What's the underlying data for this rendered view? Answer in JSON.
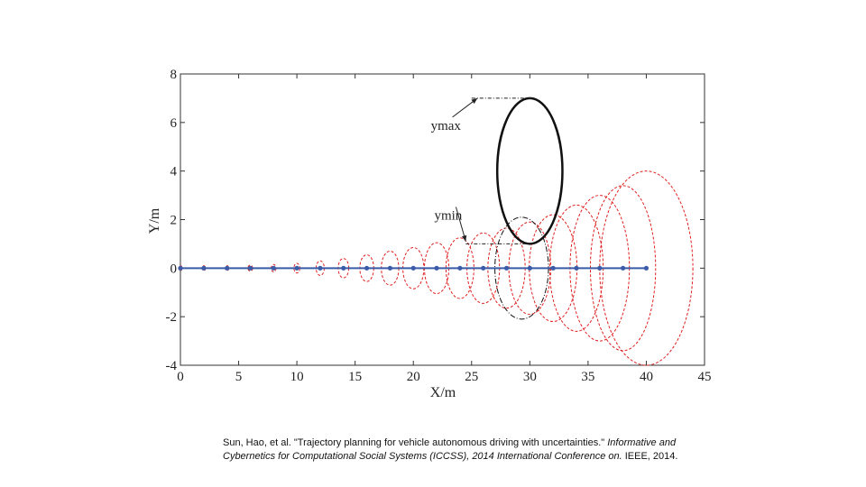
{
  "chart_data": {
    "type": "scatter",
    "xlabel": "X/m",
    "ylabel": "Y/m",
    "xlim": [
      0,
      45
    ],
    "ylim": [
      -4,
      8
    ],
    "x_ticks": [
      "0",
      "5",
      "10",
      "15",
      "20",
      "25",
      "30",
      "35",
      "40",
      "45"
    ],
    "y_ticks": [
      "-4",
      "-2",
      "0",
      "2",
      "4",
      "6",
      "8"
    ],
    "trajectory": {
      "color": "#3a5ba8",
      "x": [
        0,
        2,
        4,
        6,
        8,
        10,
        12,
        14,
        16,
        18,
        20,
        22,
        24,
        26,
        28,
        30,
        32,
        34,
        36,
        38,
        40
      ],
      "y": [
        0,
        0,
        0,
        0,
        0,
        0,
        0,
        0,
        0,
        0,
        0,
        0,
        0,
        0,
        0,
        0,
        0,
        0,
        0,
        0,
        0
      ]
    },
    "uncertainty_ellipses": {
      "color": "#e02020",
      "items": [
        {
          "cx": 0,
          "cy": 0,
          "rx": 0.15,
          "ry": 0.1
        },
        {
          "cx": 2,
          "cy": 0,
          "rx": 0.15,
          "ry": 0.1
        },
        {
          "cx": 4,
          "cy": 0,
          "rx": 0.15,
          "ry": 0.1
        },
        {
          "cx": 6,
          "cy": 0,
          "rx": 0.2,
          "ry": 0.12
        },
        {
          "cx": 8,
          "cy": 0,
          "rx": 0.2,
          "ry": 0.15
        },
        {
          "cx": 10,
          "cy": 0,
          "rx": 0.25,
          "ry": 0.2
        },
        {
          "cx": 12,
          "cy": 0,
          "rx": 0.35,
          "ry": 0.3
        },
        {
          "cx": 14,
          "cy": 0,
          "rx": 0.45,
          "ry": 0.4
        },
        {
          "cx": 16,
          "cy": 0,
          "rx": 0.6,
          "ry": 0.55
        },
        {
          "cx": 18,
          "cy": 0,
          "rx": 0.75,
          "ry": 0.7
        },
        {
          "cx": 20,
          "cy": 0,
          "rx": 0.9,
          "ry": 0.85
        },
        {
          "cx": 22,
          "cy": 0,
          "rx": 1.05,
          "ry": 1.05
        },
        {
          "cx": 24,
          "cy": 0,
          "rx": 1.2,
          "ry": 1.25
        },
        {
          "cx": 26,
          "cy": 0,
          "rx": 1.4,
          "ry": 1.45
        },
        {
          "cx": 28,
          "cy": 0,
          "rx": 1.6,
          "ry": 1.65
        },
        {
          "cx": 30,
          "cy": 0,
          "rx": 1.8,
          "ry": 1.9
        },
        {
          "cx": 32,
          "cy": 0,
          "rx": 2.05,
          "ry": 2.2
        },
        {
          "cx": 34,
          "cy": 0,
          "rx": 2.3,
          "ry": 2.6
        },
        {
          "cx": 36,
          "cy": 0,
          "rx": 2.55,
          "ry": 3.0
        },
        {
          "cx": 38,
          "cy": 0,
          "rx": 2.8,
          "ry": 3.4
        },
        {
          "cx": 40,
          "cy": 0,
          "rx": 4.0,
          "ry": 4.0
        }
      ]
    },
    "obstacle": {
      "cx": 30,
      "cy": 4,
      "rx": 2.8,
      "ry": 3.0,
      "color": "#111111"
    },
    "projected_obstacle": {
      "cx": 29.3,
      "cy": 0,
      "rx": 2.3,
      "ry": 2.1,
      "color": "#111111"
    },
    "annotations": [
      {
        "text": "ymax",
        "text_x": 21.5,
        "text_y": 5.7,
        "arrow_to_x": 25.5,
        "arrow_to_y": 7.0,
        "ref_y": 7.0,
        "ref_x_from": 25,
        "ref_x_to": 30.5
      },
      {
        "text": "ymin",
        "text_x": 21.8,
        "text_y": 2.0,
        "arrow_to_x": 24.5,
        "arrow_to_y": 1.1,
        "ref_y": 1.0,
        "ref_x_from": 24.5,
        "ref_x_to": 30.5
      }
    ]
  },
  "citation": {
    "part1": "Sun, Hao, et al. \"Trajectory planning for vehicle autonomous driving with uncertainties.\"",
    "part2": "Informative and Cybernetics for Computational Social Systems (ICCSS), 2014 International Conference on.",
    "part3": "IEEE, 2014."
  }
}
